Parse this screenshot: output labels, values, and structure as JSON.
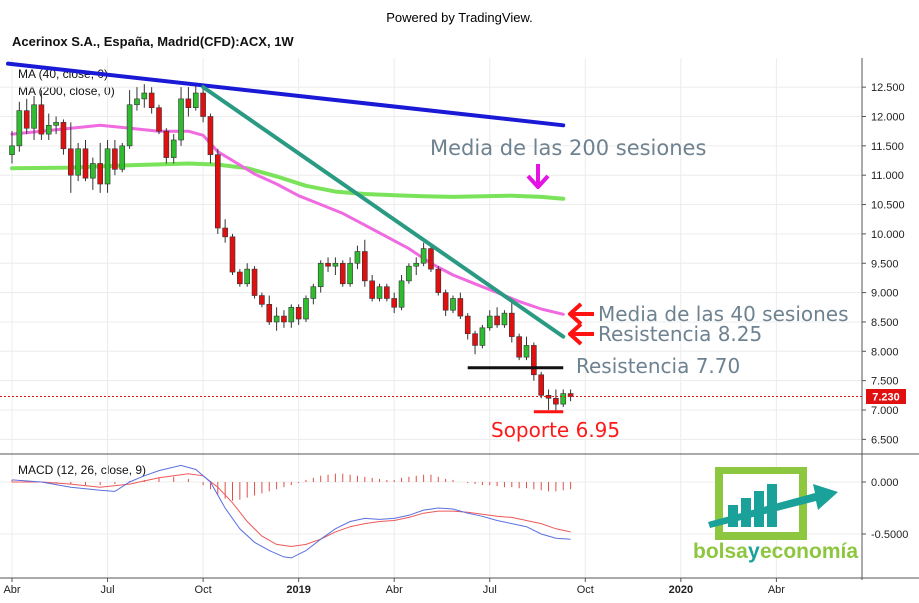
{
  "header": {
    "powered_by": "Powered by TradingView.",
    "title": "Acerinox S.A., España, Madrid(CFD):ACX, 1W"
  },
  "indicators": {
    "ma40": "MA (40, close, 0)",
    "ma200": "MA (200, close, 0)",
    "macd": "MACD (12, 26, close, 9)"
  },
  "annotations": {
    "ma200": "Media de las 200 sesiones",
    "ma40": "Media de las 40 sesiones",
    "res825": "Resistencia 8.25",
    "res770": "Resistencia 7.70",
    "sup695": "Soporte 6.95"
  },
  "price_label": "7.230",
  "logo": {
    "part1": "bolsa",
    "part2": "y",
    "part3": "economía"
  },
  "colors": {
    "up": "#2fbd2f",
    "down": "#e01010",
    "ma40": "#f06ae0",
    "ma200": "#7ae35a",
    "trend_blue": "#1a1ad6",
    "trend_green": "#2a9a83",
    "annotation_text": "#6e8290",
    "macd_line": "#5a6fe0",
    "signal_line": "#ef5858",
    "logo_green": "#8dc63f",
    "logo_teal": "#1aa199"
  },
  "chart_data": {
    "type": "candlestick",
    "y_ticks": [
      6.5,
      7.0,
      7.5,
      8.0,
      8.5,
      9.0,
      9.5,
      10.0,
      10.5,
      11.0,
      11.5,
      12.0,
      12.5
    ],
    "y_tick_labels": [
      "6.500",
      "7.000",
      "7.500",
      "8.000",
      "8.500",
      "9.000",
      "9.500",
      "10.000",
      "10.500",
      "11.000",
      "11.500",
      "12.000",
      "12.500"
    ],
    "ylim": [
      6.2,
      12.95
    ],
    "x_ticks": [
      {
        "label": "Abr",
        "week": 0
      },
      {
        "label": "Jul",
        "week": 13
      },
      {
        "label": "Oct",
        "week": 26
      },
      {
        "label": "2019",
        "week": 39
      },
      {
        "label": "Abr",
        "week": 52
      },
      {
        "label": "Jul",
        "week": 65
      },
      {
        "label": "Oct",
        "week": 78
      },
      {
        "label": "2020",
        "week": 91
      },
      {
        "label": "Abr",
        "week": 104
      }
    ],
    "candles": [
      {
        "w": 0,
        "o": 11.35,
        "h": 11.75,
        "l": 11.2,
        "c": 11.5
      },
      {
        "w": 1,
        "o": 11.5,
        "h": 12.25,
        "l": 11.4,
        "c": 12.1
      },
      {
        "w": 2,
        "o": 12.1,
        "h": 12.3,
        "l": 11.7,
        "c": 11.8
      },
      {
        "w": 3,
        "o": 11.8,
        "h": 12.35,
        "l": 11.6,
        "c": 12.2
      },
      {
        "w": 4,
        "o": 12.2,
        "h": 12.45,
        "l": 11.6,
        "c": 11.7
      },
      {
        "w": 5,
        "o": 11.7,
        "h": 12.05,
        "l": 11.6,
        "c": 11.85
      },
      {
        "w": 6,
        "o": 11.85,
        "h": 12.0,
        "l": 11.7,
        "c": 11.9
      },
      {
        "w": 7,
        "o": 11.9,
        "h": 11.95,
        "l": 11.35,
        "c": 11.45
      },
      {
        "w": 8,
        "o": 11.45,
        "h": 11.9,
        "l": 10.7,
        "c": 11.0
      },
      {
        "w": 9,
        "o": 11.0,
        "h": 11.55,
        "l": 10.9,
        "c": 11.45
      },
      {
        "w": 10,
        "o": 11.45,
        "h": 11.6,
        "l": 10.9,
        "c": 10.95
      },
      {
        "w": 11,
        "o": 10.95,
        "h": 11.3,
        "l": 10.75,
        "c": 11.2
      },
      {
        "w": 12,
        "o": 11.2,
        "h": 11.55,
        "l": 10.7,
        "c": 10.85
      },
      {
        "w": 13,
        "o": 10.85,
        "h": 11.6,
        "l": 10.7,
        "c": 11.45
      },
      {
        "w": 14,
        "o": 11.45,
        "h": 11.6,
        "l": 11.0,
        "c": 11.1
      },
      {
        "w": 15,
        "o": 11.1,
        "h": 11.55,
        "l": 11.05,
        "c": 11.5
      },
      {
        "w": 16,
        "o": 11.5,
        "h": 12.45,
        "l": 11.45,
        "c": 12.2
      },
      {
        "w": 17,
        "o": 12.2,
        "h": 12.5,
        "l": 12.1,
        "c": 12.3
      },
      {
        "w": 18,
        "o": 12.3,
        "h": 12.55,
        "l": 12.15,
        "c": 12.4
      },
      {
        "w": 19,
        "o": 12.4,
        "h": 12.5,
        "l": 12.05,
        "c": 12.15
      },
      {
        "w": 20,
        "o": 12.15,
        "h": 12.2,
        "l": 11.7,
        "c": 11.75
      },
      {
        "w": 21,
        "o": 11.75,
        "h": 11.8,
        "l": 11.2,
        "c": 11.3
      },
      {
        "w": 22,
        "o": 11.3,
        "h": 11.7,
        "l": 11.2,
        "c": 11.6
      },
      {
        "w": 23,
        "o": 11.6,
        "h": 12.5,
        "l": 11.5,
        "c": 12.3
      },
      {
        "w": 24,
        "o": 12.3,
        "h": 12.5,
        "l": 12.0,
        "c": 12.15
      },
      {
        "w": 25,
        "o": 12.15,
        "h": 12.55,
        "l": 12.1,
        "c": 12.4
      },
      {
        "w": 26,
        "o": 12.4,
        "h": 12.5,
        "l": 11.9,
        "c": 12.0
      },
      {
        "w": 27,
        "o": 12.0,
        "h": 12.05,
        "l": 11.2,
        "c": 11.35
      },
      {
        "w": 28,
        "o": 11.35,
        "h": 11.45,
        "l": 10.0,
        "c": 10.1
      },
      {
        "w": 29,
        "o": 10.1,
        "h": 10.25,
        "l": 9.85,
        "c": 9.95
      },
      {
        "w": 30,
        "o": 9.95,
        "h": 10.0,
        "l": 9.3,
        "c": 9.35
      },
      {
        "w": 31,
        "o": 9.35,
        "h": 9.4,
        "l": 9.1,
        "c": 9.15
      },
      {
        "w": 32,
        "o": 9.15,
        "h": 9.5,
        "l": 9.1,
        "c": 9.4
      },
      {
        "w": 33,
        "o": 9.4,
        "h": 9.45,
        "l": 8.9,
        "c": 8.95
      },
      {
        "w": 34,
        "o": 8.95,
        "h": 9.0,
        "l": 8.75,
        "c": 8.8
      },
      {
        "w": 35,
        "o": 8.8,
        "h": 8.95,
        "l": 8.45,
        "c": 8.5
      },
      {
        "w": 36,
        "o": 8.5,
        "h": 8.75,
        "l": 8.35,
        "c": 8.6
      },
      {
        "w": 37,
        "o": 8.6,
        "h": 8.7,
        "l": 8.4,
        "c": 8.5
      },
      {
        "w": 38,
        "o": 8.5,
        "h": 8.8,
        "l": 8.4,
        "c": 8.75
      },
      {
        "w": 39,
        "o": 8.75,
        "h": 8.8,
        "l": 8.45,
        "c": 8.55
      },
      {
        "w": 40,
        "o": 8.55,
        "h": 8.95,
        "l": 8.5,
        "c": 8.9
      },
      {
        "w": 41,
        "o": 8.9,
        "h": 9.15,
        "l": 8.8,
        "c": 9.1
      },
      {
        "w": 42,
        "o": 9.1,
        "h": 9.55,
        "l": 9.0,
        "c": 9.5
      },
      {
        "w": 43,
        "o": 9.5,
        "h": 9.6,
        "l": 9.35,
        "c": 9.45
      },
      {
        "w": 44,
        "o": 9.45,
        "h": 9.6,
        "l": 9.3,
        "c": 9.5
      },
      {
        "w": 45,
        "o": 9.5,
        "h": 9.55,
        "l": 9.1,
        "c": 9.15
      },
      {
        "w": 46,
        "o": 9.15,
        "h": 9.6,
        "l": 9.1,
        "c": 9.5
      },
      {
        "w": 47,
        "o": 9.5,
        "h": 9.8,
        "l": 9.4,
        "c": 9.7
      },
      {
        "w": 48,
        "o": 9.7,
        "h": 9.9,
        "l": 9.1,
        "c": 9.2
      },
      {
        "w": 49,
        "o": 9.2,
        "h": 9.3,
        "l": 8.85,
        "c": 8.9
      },
      {
        "w": 50,
        "o": 8.9,
        "h": 9.15,
        "l": 8.85,
        "c": 9.1
      },
      {
        "w": 51,
        "o": 9.1,
        "h": 9.15,
        "l": 8.85,
        "c": 8.9
      },
      {
        "w": 52,
        "o": 8.9,
        "h": 9.0,
        "l": 8.65,
        "c": 8.75
      },
      {
        "w": 53,
        "o": 8.75,
        "h": 9.3,
        "l": 8.7,
        "c": 9.2
      },
      {
        "w": 54,
        "o": 9.2,
        "h": 9.5,
        "l": 9.15,
        "c": 9.45
      },
      {
        "w": 55,
        "o": 9.45,
        "h": 9.6,
        "l": 9.3,
        "c": 9.5
      },
      {
        "w": 56,
        "o": 9.5,
        "h": 9.85,
        "l": 9.45,
        "c": 9.75
      },
      {
        "w": 57,
        "o": 9.75,
        "h": 9.8,
        "l": 9.35,
        "c": 9.4
      },
      {
        "w": 58,
        "o": 9.4,
        "h": 9.45,
        "l": 8.95,
        "c": 9.0
      },
      {
        "w": 59,
        "o": 9.0,
        "h": 9.05,
        "l": 8.6,
        "c": 8.7
      },
      {
        "w": 60,
        "o": 8.7,
        "h": 8.95,
        "l": 8.65,
        "c": 8.9
      },
      {
        "w": 61,
        "o": 8.9,
        "h": 9.0,
        "l": 8.55,
        "c": 8.6
      },
      {
        "w": 62,
        "o": 8.6,
        "h": 8.65,
        "l": 8.2,
        "c": 8.3
      },
      {
        "w": 63,
        "o": 8.3,
        "h": 8.35,
        "l": 7.95,
        "c": 8.1
      },
      {
        "w": 64,
        "o": 8.1,
        "h": 8.45,
        "l": 8.05,
        "c": 8.4
      },
      {
        "w": 65,
        "o": 8.4,
        "h": 8.7,
        "l": 8.35,
        "c": 8.6
      },
      {
        "w": 66,
        "o": 8.6,
        "h": 8.75,
        "l": 8.4,
        "c": 8.45
      },
      {
        "w": 67,
        "o": 8.45,
        "h": 8.7,
        "l": 8.4,
        "c": 8.65
      },
      {
        "w": 68,
        "o": 8.65,
        "h": 8.85,
        "l": 8.15,
        "c": 8.25
      },
      {
        "w": 69,
        "o": 8.25,
        "h": 8.3,
        "l": 7.85,
        "c": 7.9
      },
      {
        "w": 70,
        "o": 7.9,
        "h": 8.25,
        "l": 7.85,
        "c": 8.1
      },
      {
        "w": 71,
        "o": 8.1,
        "h": 8.15,
        "l": 7.5,
        "c": 7.6
      },
      {
        "w": 72,
        "o": 7.6,
        "h": 7.65,
        "l": 7.2,
        "c": 7.25
      },
      {
        "w": 73,
        "o": 7.25,
        "h": 7.35,
        "l": 7.0,
        "c": 7.2
      },
      {
        "w": 74,
        "o": 7.2,
        "h": 7.35,
        "l": 6.95,
        "c": 7.1
      },
      {
        "w": 75,
        "o": 7.1,
        "h": 7.35,
        "l": 7.05,
        "c": 7.28
      },
      {
        "w": 76,
        "o": 7.28,
        "h": 7.35,
        "l": 7.15,
        "c": 7.23
      }
    ],
    "ma40": [
      [
        0,
        11.7
      ],
      [
        4,
        11.75
      ],
      [
        8,
        11.8
      ],
      [
        12,
        11.85
      ],
      [
        16,
        11.8
      ],
      [
        20,
        11.75
      ],
      [
        24,
        11.75
      ],
      [
        26,
        11.68
      ],
      [
        28,
        11.4
      ],
      [
        30,
        11.25
      ],
      [
        33,
        11.02
      ],
      [
        36,
        10.85
      ],
      [
        39,
        10.65
      ],
      [
        42,
        10.5
      ],
      [
        45,
        10.35
      ],
      [
        48,
        10.15
      ],
      [
        51,
        9.95
      ],
      [
        54,
        9.75
      ],
      [
        57,
        9.5
      ],
      [
        60,
        9.3
      ],
      [
        63,
        9.15
      ],
      [
        66,
        9.0
      ],
      [
        69,
        8.85
      ],
      [
        72,
        8.72
      ],
      [
        75,
        8.63
      ]
    ],
    "ma200": [
      [
        0,
        11.12
      ],
      [
        8,
        11.13
      ],
      [
        16,
        11.17
      ],
      [
        24,
        11.2
      ],
      [
        28,
        11.18
      ],
      [
        32,
        11.12
      ],
      [
        36,
        10.98
      ],
      [
        40,
        10.82
      ],
      [
        44,
        10.72
      ],
      [
        48,
        10.68
      ],
      [
        52,
        10.66
      ],
      [
        56,
        10.64
      ],
      [
        60,
        10.63
      ],
      [
        64,
        10.64
      ],
      [
        68,
        10.65
      ],
      [
        72,
        10.63
      ],
      [
        75,
        10.6
      ]
    ],
    "trendlines": [
      {
        "name": "blue",
        "from": [
          0,
          12.9
        ],
        "to": [
          75,
          11.85
        ]
      },
      {
        "name": "green",
        "from": [
          26,
          12.5
        ],
        "to": [
          75,
          8.25
        ]
      }
    ],
    "levels": [
      {
        "name": "resistencia-7.70",
        "value": 7.72,
        "from_week": 62,
        "to_week": 75
      },
      {
        "name": "soporte-6.95",
        "value": 6.97,
        "from_week": 71,
        "to_week": 75
      },
      {
        "name": "precio-actual",
        "value": 7.23
      }
    ],
    "macd": {
      "y_ticks": [
        0.0,
        -0.5
      ],
      "y_tick_labels": [
        "0.000",
        "-0.5000"
      ],
      "ylim": [
        -0.75,
        0.22
      ],
      "macd_line": [
        [
          0,
          0.02
        ],
        [
          4,
          0.0
        ],
        [
          8,
          -0.05
        ],
        [
          12,
          -0.08
        ],
        [
          14,
          -0.09
        ],
        [
          16,
          0.0
        ],
        [
          18,
          0.06
        ],
        [
          20,
          0.11
        ],
        [
          23,
          0.16
        ],
        [
          25,
          0.12
        ],
        [
          27,
          0.0
        ],
        [
          29,
          -0.25
        ],
        [
          31,
          -0.45
        ],
        [
          33,
          -0.58
        ],
        [
          35,
          -0.66
        ],
        [
          37,
          -0.72
        ],
        [
          38,
          -0.73
        ],
        [
          40,
          -0.66
        ],
        [
          42,
          -0.55
        ],
        [
          44,
          -0.45
        ],
        [
          46,
          -0.38
        ],
        [
          48,
          -0.35
        ],
        [
          50,
          -0.36
        ],
        [
          52,
          -0.35
        ],
        [
          54,
          -0.32
        ],
        [
          56,
          -0.27
        ],
        [
          58,
          -0.25
        ],
        [
          60,
          -0.26
        ],
        [
          62,
          -0.3
        ],
        [
          64,
          -0.33
        ],
        [
          66,
          -0.37
        ],
        [
          68,
          -0.4
        ],
        [
          70,
          -0.43
        ],
        [
          72,
          -0.5
        ],
        [
          74,
          -0.54
        ],
        [
          76,
          -0.55
        ]
      ],
      "signal_line": [
        [
          0,
          0.0
        ],
        [
          4,
          0.0
        ],
        [
          8,
          -0.02
        ],
        [
          12,
          -0.05
        ],
        [
          16,
          -0.02
        ],
        [
          20,
          0.04
        ],
        [
          24,
          0.08
        ],
        [
          26,
          0.06
        ],
        [
          28,
          -0.05
        ],
        [
          30,
          -0.2
        ],
        [
          32,
          -0.38
        ],
        [
          34,
          -0.52
        ],
        [
          36,
          -0.6
        ],
        [
          38,
          -0.62
        ],
        [
          40,
          -0.6
        ],
        [
          42,
          -0.55
        ],
        [
          44,
          -0.48
        ],
        [
          46,
          -0.43
        ],
        [
          48,
          -0.4
        ],
        [
          50,
          -0.38
        ],
        [
          52,
          -0.37
        ],
        [
          54,
          -0.34
        ],
        [
          56,
          -0.3
        ],
        [
          58,
          -0.28
        ],
        [
          60,
          -0.28
        ],
        [
          62,
          -0.29
        ],
        [
          64,
          -0.31
        ],
        [
          66,
          -0.33
        ],
        [
          68,
          -0.34
        ],
        [
          70,
          -0.37
        ],
        [
          72,
          -0.4
        ],
        [
          74,
          -0.45
        ],
        [
          76,
          -0.48
        ]
      ],
      "histogram": [
        [
          0,
          0.02
        ],
        [
          2,
          0.01
        ],
        [
          4,
          0.0
        ],
        [
          6,
          -0.01
        ],
        [
          8,
          -0.02
        ],
        [
          10,
          -0.03
        ],
        [
          12,
          -0.03
        ],
        [
          14,
          -0.02
        ],
        [
          16,
          0.01
        ],
        [
          18,
          0.02
        ],
        [
          20,
          0.04
        ],
        [
          22,
          0.05
        ],
        [
          24,
          0.03
        ],
        [
          26,
          -0.03
        ],
        [
          27,
          -0.07
        ],
        [
          28,
          -0.12
        ],
        [
          29,
          -0.16
        ],
        [
          30,
          -0.18
        ],
        [
          31,
          -0.17
        ],
        [
          32,
          -0.15
        ],
        [
          33,
          -0.13
        ],
        [
          34,
          -0.11
        ],
        [
          35,
          -0.09
        ],
        [
          36,
          -0.07
        ],
        [
          37,
          -0.05
        ],
        [
          38,
          -0.03
        ],
        [
          39,
          -0.01
        ],
        [
          40,
          0.02
        ],
        [
          41,
          0.04
        ],
        [
          42,
          0.06
        ],
        [
          43,
          0.07
        ],
        [
          44,
          0.08
        ],
        [
          45,
          0.08
        ],
        [
          46,
          0.07
        ],
        [
          47,
          0.06
        ],
        [
          48,
          0.05
        ],
        [
          49,
          0.04
        ],
        [
          50,
          0.03
        ],
        [
          51,
          0.02
        ],
        [
          52,
          0.02
        ],
        [
          53,
          0.04
        ],
        [
          54,
          0.05
        ],
        [
          55,
          0.06
        ],
        [
          56,
          0.07
        ],
        [
          57,
          0.07
        ],
        [
          58,
          0.05
        ],
        [
          59,
          0.03
        ],
        [
          60,
          0.02
        ],
        [
          61,
          0.0
        ],
        [
          62,
          -0.01
        ],
        [
          63,
          -0.02
        ],
        [
          64,
          -0.03
        ],
        [
          65,
          -0.03
        ],
        [
          66,
          -0.04
        ],
        [
          67,
          -0.05
        ],
        [
          68,
          -0.05
        ],
        [
          69,
          -0.06
        ],
        [
          70,
          -0.06
        ],
        [
          71,
          -0.07
        ],
        [
          72,
          -0.08
        ],
        [
          73,
          -0.09
        ],
        [
          74,
          -0.09
        ],
        [
          75,
          -0.08
        ],
        [
          76,
          -0.07
        ]
      ]
    }
  }
}
